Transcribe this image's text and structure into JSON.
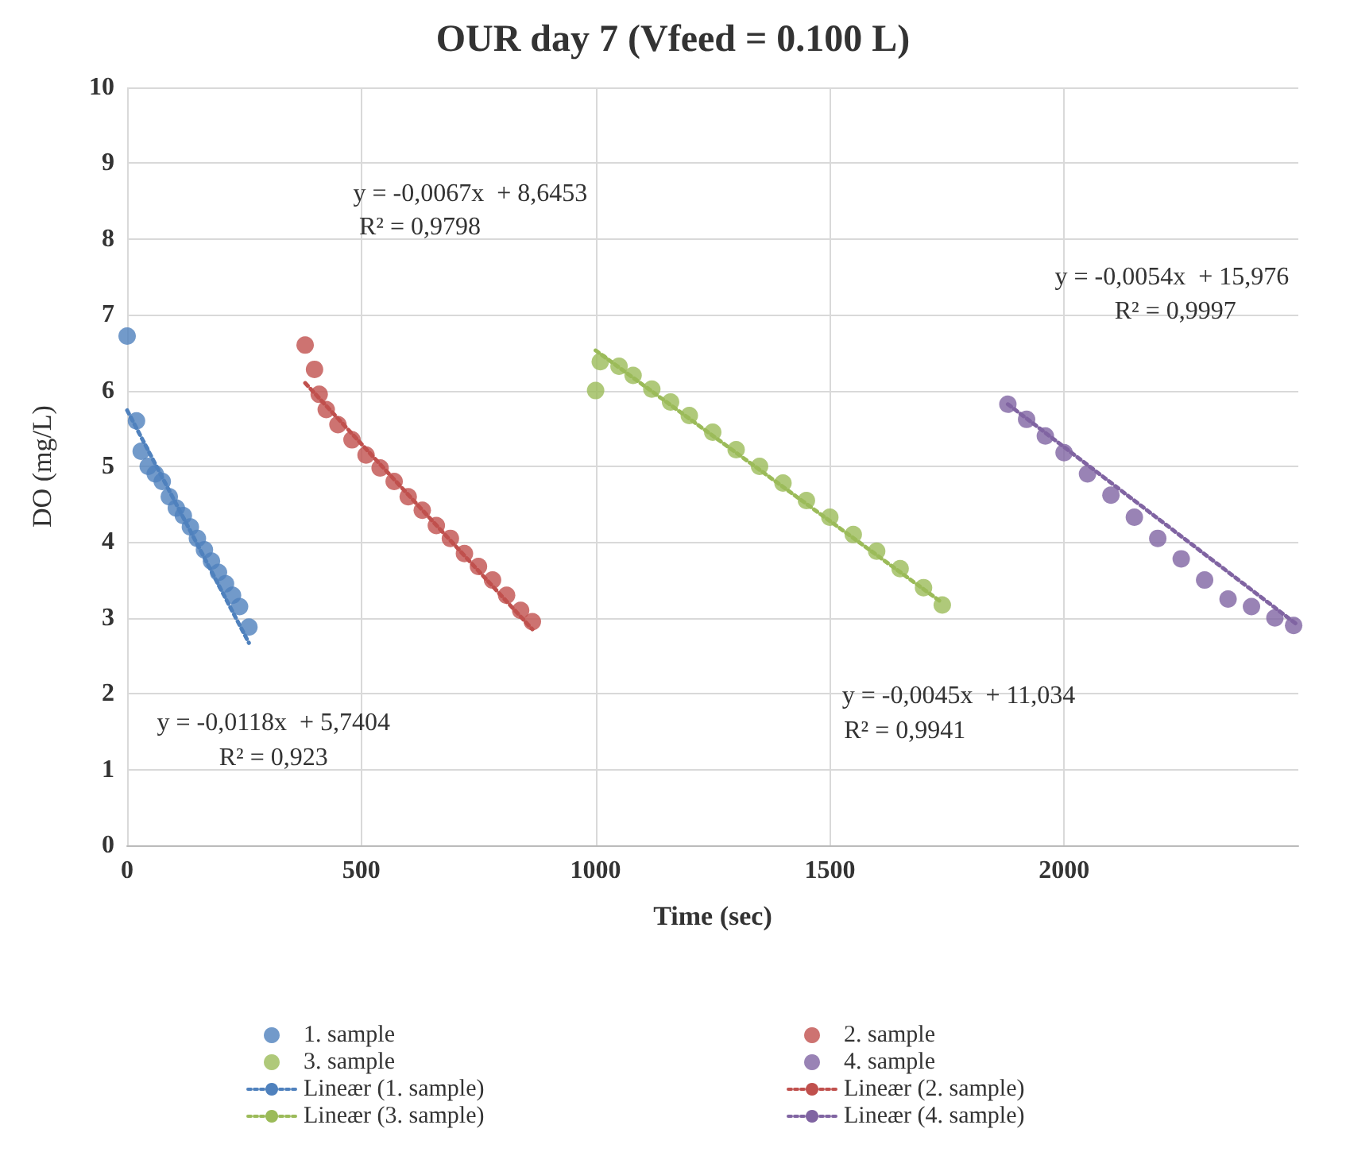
{
  "chart_data": {
    "type": "scatter",
    "title": "OUR day 7 (Vfeed = 0.100 L)",
    "xlabel": "Time (sec)",
    "ylabel": "DO (mg/L)",
    "xlim": [
      0,
      2500
    ],
    "xticks": [
      0,
      500,
      1000,
      1500,
      2000
    ],
    "ylim": [
      0,
      10
    ],
    "yticks": [
      0,
      1,
      2,
      3,
      4,
      5,
      6,
      7,
      8,
      9,
      10
    ],
    "grid": true,
    "legend": "bottom",
    "series": [
      {
        "name": "1. sample",
        "marker": "circle",
        "color": "#4f81bd",
        "x": [
          0,
          20,
          30,
          45,
          60,
          75,
          90,
          105,
          120,
          135,
          150,
          165,
          180,
          195,
          210,
          225,
          240,
          260
        ],
        "values": [
          6.72,
          5.6,
          5.2,
          5.0,
          4.9,
          4.8,
          4.6,
          4.45,
          4.35,
          4.2,
          4.05,
          3.9,
          3.75,
          3.6,
          3.45,
          3.3,
          3.15,
          2.88
        ]
      },
      {
        "name": "2. sample",
        "marker": "circle",
        "color": "#c0504d",
        "x": [
          380,
          400,
          410,
          425,
          450,
          480,
          510,
          540,
          570,
          600,
          630,
          660,
          690,
          720,
          750,
          780,
          810,
          840,
          865
        ],
        "values": [
          6.6,
          6.28,
          5.95,
          5.75,
          5.55,
          5.35,
          5.15,
          4.98,
          4.8,
          4.6,
          4.42,
          4.22,
          4.05,
          3.85,
          3.68,
          3.5,
          3.3,
          3.1,
          2.95
        ]
      },
      {
        "name": "3. sample",
        "marker": "circle",
        "color": "#9bbb59",
        "x": [
          1000,
          1010,
          1050,
          1080,
          1120,
          1160,
          1200,
          1250,
          1300,
          1350,
          1400,
          1450,
          1500,
          1550,
          1600,
          1650,
          1700,
          1740
        ],
        "values": [
          6.0,
          6.38,
          6.32,
          6.2,
          6.02,
          5.85,
          5.67,
          5.45,
          5.22,
          5.0,
          4.78,
          4.55,
          4.33,
          4.1,
          3.88,
          3.65,
          3.4,
          3.17
        ]
      },
      {
        "name": "4. sample",
        "marker": "circle",
        "color": "#8064a2",
        "x": [
          1880,
          1920,
          1960,
          2000,
          2050,
          2100,
          2150,
          2200,
          2250,
          2300,
          2350,
          2400,
          2450,
          2490
        ],
        "values": [
          5.82,
          5.62,
          5.4,
          5.18,
          4.9,
          4.62,
          4.33,
          4.05,
          3.78,
          3.5,
          3.25,
          3.15,
          3.0,
          2.9
        ]
      },
      {
        "name": "Lineær (1. sample)",
        "type": "line",
        "marker": "none",
        "line_style": "dotted",
        "color": "#4f81bd",
        "x": [
          0,
          260
        ],
        "values": [
          5.74,
          2.67
        ]
      },
      {
        "name": "Lineær (2. sample)",
        "type": "line",
        "marker": "none",
        "line_style": "dotted",
        "color": "#c0504d",
        "x": [
          380,
          865
        ],
        "values": [
          6.1,
          2.85
        ]
      },
      {
        "name": "Lineær (3. sample)",
        "type": "line",
        "marker": "none",
        "line_style": "dotted",
        "color": "#9bbb59",
        "x": [
          1000,
          1740
        ],
        "values": [
          6.53,
          3.2
        ]
      },
      {
        "name": "Lineær (4. sample)",
        "type": "line",
        "marker": "none",
        "line_style": "dotted",
        "color": "#8064a2",
        "x": [
          1880,
          2500
        ],
        "values": [
          5.82,
          2.9
        ]
      }
    ],
    "annotations": [
      "y = -0,0118x  + 5,7404",
      "R² = 0,923",
      "y = -0,0067x  + 8,6453",
      "R² = 0,9798",
      "y = -0,0045x  + 11,034",
      "R² = 0,9941",
      "y = -0,0054x  + 15,976",
      "R² = 0,9997"
    ]
  }
}
